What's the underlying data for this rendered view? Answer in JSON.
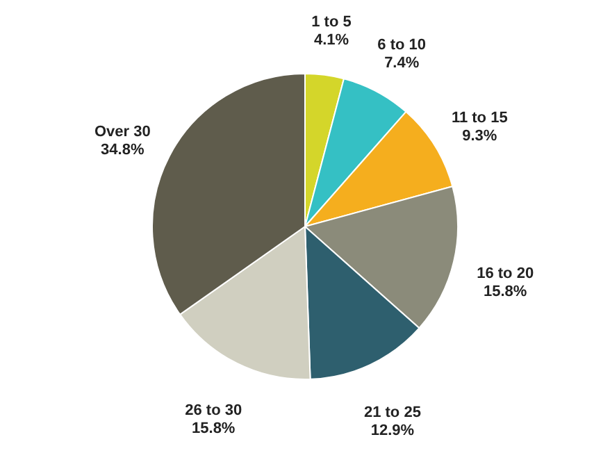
{
  "chart_data": {
    "type": "pie",
    "categories": [
      "1 to 5",
      "6 to 10",
      "11 to 15",
      "16 to 20",
      "21 to 25",
      "26 to 30",
      "Over 30"
    ],
    "values": [
      4.1,
      7.4,
      9.3,
      15.8,
      12.9,
      15.8,
      34.8
    ],
    "value_labels": [
      "4.1%",
      "7.4%",
      "9.3%",
      "15.8%",
      "12.9%",
      "15.8%",
      "34.8%"
    ],
    "colors": [
      "#d4d62a",
      "#35c0c4",
      "#f5ae1e",
      "#8b8b7a",
      "#2e5f6e",
      "#d0cfc0",
      "#5f5c4c"
    ]
  }
}
